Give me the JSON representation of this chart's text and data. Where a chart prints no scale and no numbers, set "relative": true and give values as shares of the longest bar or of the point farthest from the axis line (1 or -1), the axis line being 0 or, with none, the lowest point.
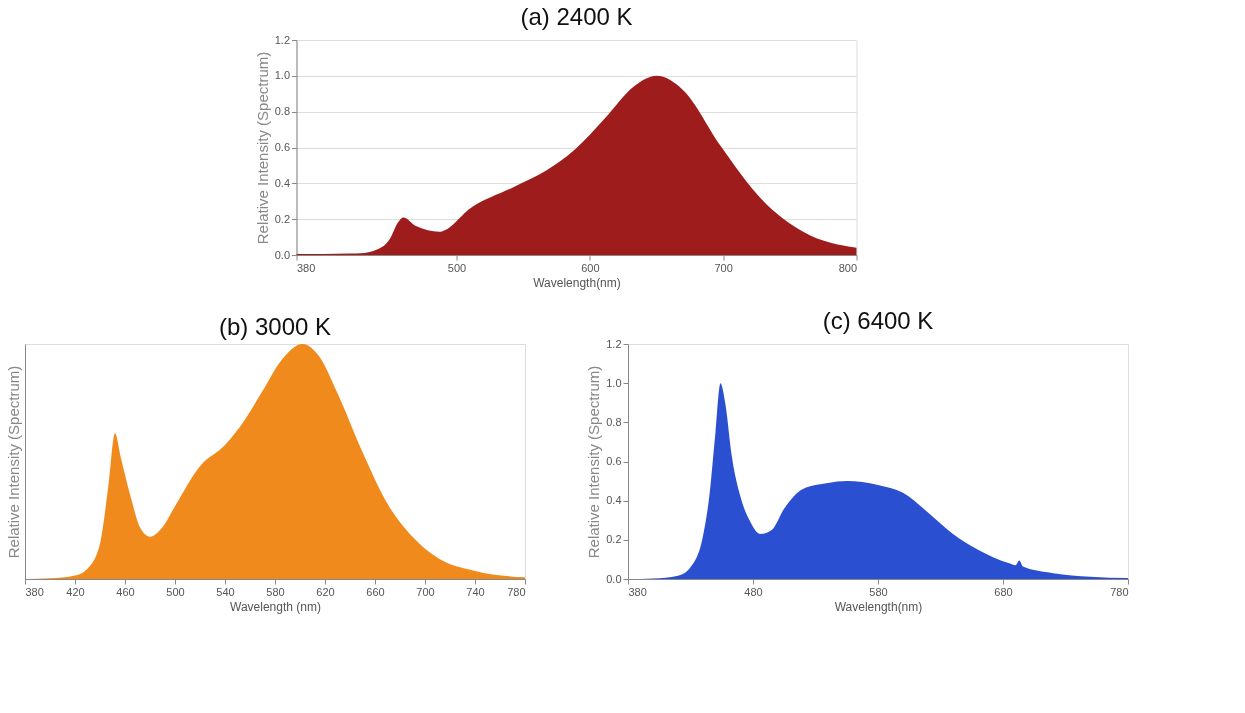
{
  "chart_data": [
    {
      "type": "area",
      "title": "(a) 2400 K",
      "xlabel": "Wavelength(nm)",
      "ylabel": "Relative Intensity (Spectrum)",
      "grid": "y",
      "xlim": [
        380,
        800
      ],
      "xticks": [
        380,
        500,
        600,
        700,
        800
      ],
      "ylim": [
        0,
        1.2
      ],
      "yticks": [
        {
          "value": 0,
          "label": "0.0"
        },
        {
          "value": 0.2,
          "label": "0.2"
        },
        {
          "value": 0.4,
          "label": "0.4"
        },
        {
          "value": 0.6,
          "label": "0.6"
        },
        {
          "value": 0.8,
          "label": "0.8"
        },
        {
          "value": 1.0,
          "label": "1.0"
        },
        {
          "value": 1.2,
          "label": "1.2"
        }
      ],
      "series": [
        {
          "color": "#9e1c1c",
          "x": [
            380,
            400,
            420,
            428,
            440,
            450,
            456,
            460,
            470,
            487,
            512,
            543,
            567,
            589,
            611,
            633,
            650,
            670,
            698,
            729,
            760,
            800
          ],
          "values": [
            0.005,
            0.005,
            0.008,
            0.01,
            0.03,
            0.09,
            0.18,
            0.21,
            0.16,
            0.13,
            0.27,
            0.38,
            0.47,
            0.59,
            0.76,
            0.94,
            1.0,
            0.92,
            0.61,
            0.31,
            0.13,
            0.04
          ]
        }
      ]
    },
    {
      "type": "area",
      "title": "(b) 3000 K",
      "xlabel": "Wavelength (nm)",
      "ylabel": "Relative Intensity (Spectrum)",
      "relative": true,
      "xlim": [
        380,
        780
      ],
      "xticks": [
        380,
        420,
        460,
        500,
        540,
        580,
        620,
        660,
        700,
        740,
        780
      ],
      "series": [
        {
          "color": "#f08a1c",
          "x": [
            380,
            400,
            420,
            430,
            440,
            447,
            452,
            457,
            465,
            472,
            480,
            490,
            500,
            520,
            540,
            555,
            570,
            585,
            602,
            615,
            630,
            650,
            670,
            690,
            710,
            740,
            780
          ],
          "values": [
            0.0,
            0.003,
            0.015,
            0.044,
            0.15,
            0.41,
            0.62,
            0.51,
            0.34,
            0.22,
            0.18,
            0.22,
            0.31,
            0.48,
            0.57,
            0.67,
            0.8,
            0.93,
            1.0,
            0.95,
            0.79,
            0.54,
            0.32,
            0.18,
            0.09,
            0.034,
            0.007
          ]
        }
      ]
    },
    {
      "type": "area",
      "title": "(c) 6400 K",
      "xlabel": "Wavelength(nm)",
      "ylabel": "Relative Intensity (Spectrum)",
      "xlim": [
        380,
        780
      ],
      "xticks": [
        380,
        480,
        580,
        680,
        780
      ],
      "ylim": [
        0,
        1.2
      ],
      "yticks": [
        {
          "value": 0,
          "label": "0.0"
        },
        {
          "value": 0.2,
          "label": "0.2"
        },
        {
          "value": 0.4,
          "label": "0.4"
        },
        {
          "value": 0.6,
          "label": "0.6"
        },
        {
          "value": 0.8,
          "label": "0.8"
        },
        {
          "value": 1.0,
          "label": "1.0"
        },
        {
          "value": 1.2,
          "label": "1.2"
        }
      ],
      "series": [
        {
          "color": "#2a4fd0",
          "x": [
            380,
            400,
            420,
            430,
            440,
            445,
            450,
            454,
            458,
            463,
            470,
            478,
            486,
            495,
            505,
            520,
            540,
            555,
            580,
            600,
            620,
            640,
            660,
            685,
            690,
            693,
            696,
            720,
            750,
            780
          ],
          "values": [
            0.0,
            0.003,
            0.017,
            0.06,
            0.22,
            0.42,
            0.75,
            1.0,
            0.89,
            0.63,
            0.42,
            0.29,
            0.23,
            0.25,
            0.36,
            0.46,
            0.49,
            0.5,
            0.48,
            0.44,
            0.34,
            0.23,
            0.15,
            0.08,
            0.07,
            0.095,
            0.064,
            0.03,
            0.012,
            0.005
          ]
        }
      ]
    }
  ]
}
